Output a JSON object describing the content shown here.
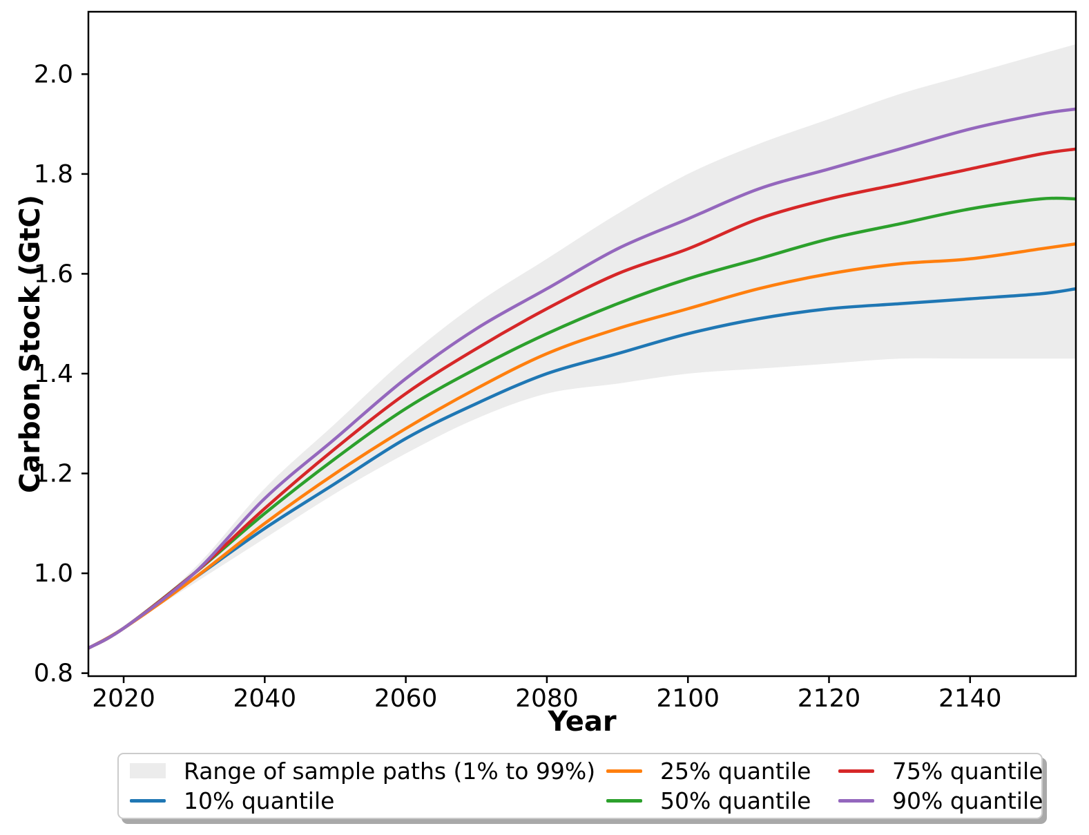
{
  "chart_data": {
    "type": "line",
    "title": "",
    "xlabel": "Year",
    "ylabel": "Carbon Stock (GtC)",
    "xlim": [
      2015,
      2155
    ],
    "ylim": [
      0.794,
      2.125
    ],
    "x_tick_values": [
      2020,
      2040,
      2060,
      2080,
      2100,
      2120,
      2140
    ],
    "x_tick_labels": [
      "2020",
      "2040",
      "2060",
      "2080",
      "2100",
      "2120",
      "2140"
    ],
    "y_tick_values": [
      0.8,
      1.0,
      1.2,
      1.4,
      1.6,
      1.8,
      2.0
    ],
    "y_tick_labels": [
      "0.8",
      "1.0",
      "1.2",
      "1.4",
      "1.6",
      "1.8",
      "2.0"
    ],
    "grid": false,
    "legend_position": "below",
    "x": [
      2015,
      2020,
      2030,
      2040,
      2050,
      2060,
      2070,
      2080,
      2090,
      2100,
      2110,
      2120,
      2130,
      2140,
      2150,
      2155
    ],
    "band": {
      "name": "Range of sample paths (1% to 99%)",
      "color": "#ececec",
      "high": [
        0.85,
        0.89,
        1.01,
        1.17,
        1.3,
        1.43,
        1.54,
        1.63,
        1.72,
        1.8,
        1.86,
        1.91,
        1.96,
        2.0,
        2.04,
        2.06
      ],
      "low": [
        0.85,
        0.89,
        0.98,
        1.07,
        1.16,
        1.24,
        1.31,
        1.36,
        1.38,
        1.4,
        1.41,
        1.42,
        1.43,
        1.43,
        1.43,
        1.43
      ]
    },
    "series": [
      {
        "name": "10% quantile",
        "color": "#1f77b4",
        "values": [
          0.85,
          0.89,
          0.99,
          1.09,
          1.18,
          1.27,
          1.34,
          1.4,
          1.44,
          1.48,
          1.51,
          1.53,
          1.54,
          1.55,
          1.56,
          1.57
        ]
      },
      {
        "name": "25% quantile",
        "color": "#ff7f0e",
        "values": [
          0.85,
          0.89,
          0.99,
          1.1,
          1.2,
          1.29,
          1.37,
          1.44,
          1.49,
          1.53,
          1.57,
          1.6,
          1.62,
          1.63,
          1.65,
          1.66
        ]
      },
      {
        "name": "50% quantile",
        "color": "#2ca02c",
        "values": [
          0.85,
          0.89,
          1.0,
          1.12,
          1.23,
          1.33,
          1.41,
          1.48,
          1.54,
          1.59,
          1.63,
          1.67,
          1.7,
          1.73,
          1.75,
          1.75
        ]
      },
      {
        "name": "75% quantile",
        "color": "#d62728",
        "values": [
          0.85,
          0.89,
          1.0,
          1.13,
          1.25,
          1.36,
          1.45,
          1.53,
          1.6,
          1.65,
          1.71,
          1.75,
          1.78,
          1.81,
          1.84,
          1.85
        ]
      },
      {
        "name": "90% quantile",
        "color": "#9467bd",
        "values": [
          0.85,
          0.89,
          1.0,
          1.15,
          1.27,
          1.39,
          1.49,
          1.57,
          1.65,
          1.71,
          1.77,
          1.81,
          1.85,
          1.89,
          1.92,
          1.93
        ]
      }
    ]
  },
  "legend": {
    "items": [
      {
        "label": "Range of sample paths (1% to 99%)",
        "swatch": "patch",
        "color": "#ececec"
      },
      {
        "label": "10% quantile",
        "swatch": "line",
        "color": "#1f77b4"
      },
      {
        "label": "25% quantile",
        "swatch": "line",
        "color": "#ff7f0e"
      },
      {
        "label": "50% quantile",
        "swatch": "line",
        "color": "#2ca02c"
      },
      {
        "label": "75% quantile",
        "swatch": "line",
        "color": "#d62728"
      },
      {
        "label": "90% quantile",
        "swatch": "line",
        "color": "#9467bd"
      }
    ]
  }
}
